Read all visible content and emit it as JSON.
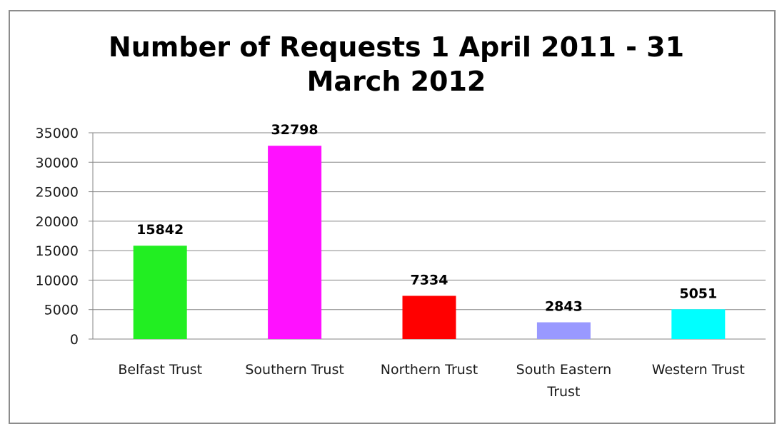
{
  "chart_data": {
    "type": "bar",
    "title_lines": [
      "Number of Requests 1 April 2011 - 31",
      "March 2012"
    ],
    "categories": [
      [
        "Belfast Trust"
      ],
      [
        "Southern Trust"
      ],
      [
        "Northern Trust"
      ],
      [
        "South Eastern",
        "Trust"
      ],
      [
        "Western Trust"
      ]
    ],
    "values": [
      15842,
      32798,
      7334,
      2843,
      5051
    ],
    "colors": [
      "#22ee22",
      "#ff11ff",
      "#ff0000",
      "#9999ff",
      "#00ffff"
    ],
    "ylim": [
      0,
      35000
    ],
    "y_ticks": [
      "0",
      "5000",
      "10000",
      "15000",
      "20000",
      "25000",
      "30000",
      "35000"
    ],
    "grid": true,
    "legend": "none",
    "data_labels": true
  }
}
